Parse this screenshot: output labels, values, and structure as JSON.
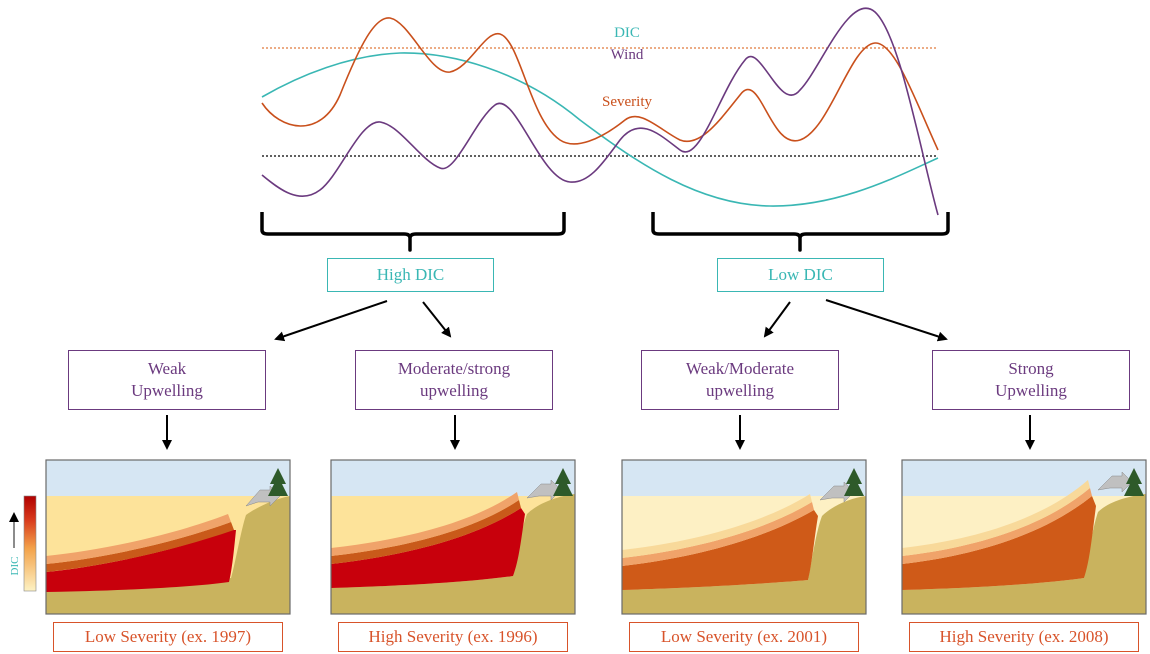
{
  "colors": {
    "dic": "#3ab7b4",
    "wind": "#6b3a7f",
    "severity": "#c9501c",
    "severity_border": "#d8532a",
    "sky": "#d6e6f3",
    "land": "#c9b35e"
  },
  "legend": {
    "dic": "DIC",
    "wind": "Wind",
    "severity": "Severity"
  },
  "dic_groups": [
    {
      "label": "High DIC"
    },
    {
      "label": "Low DIC"
    }
  ],
  "upwelling": [
    {
      "line1": "Weak",
      "line2": "Upwelling"
    },
    {
      "line1": "Moderate/strong",
      "line2": "upwelling"
    },
    {
      "line1": "Weak/Moderate",
      "line2": "upwelling"
    },
    {
      "line1": "Strong",
      "line2": "Upwelling"
    }
  ],
  "severity_labels": [
    "Low Severity (ex. 1997)",
    "High Severity (ex. 1996)",
    "Low Severity (ex. 2001)",
    "High Severity (ex. 2008)"
  ],
  "colorbar": {
    "label": "DIC"
  }
}
